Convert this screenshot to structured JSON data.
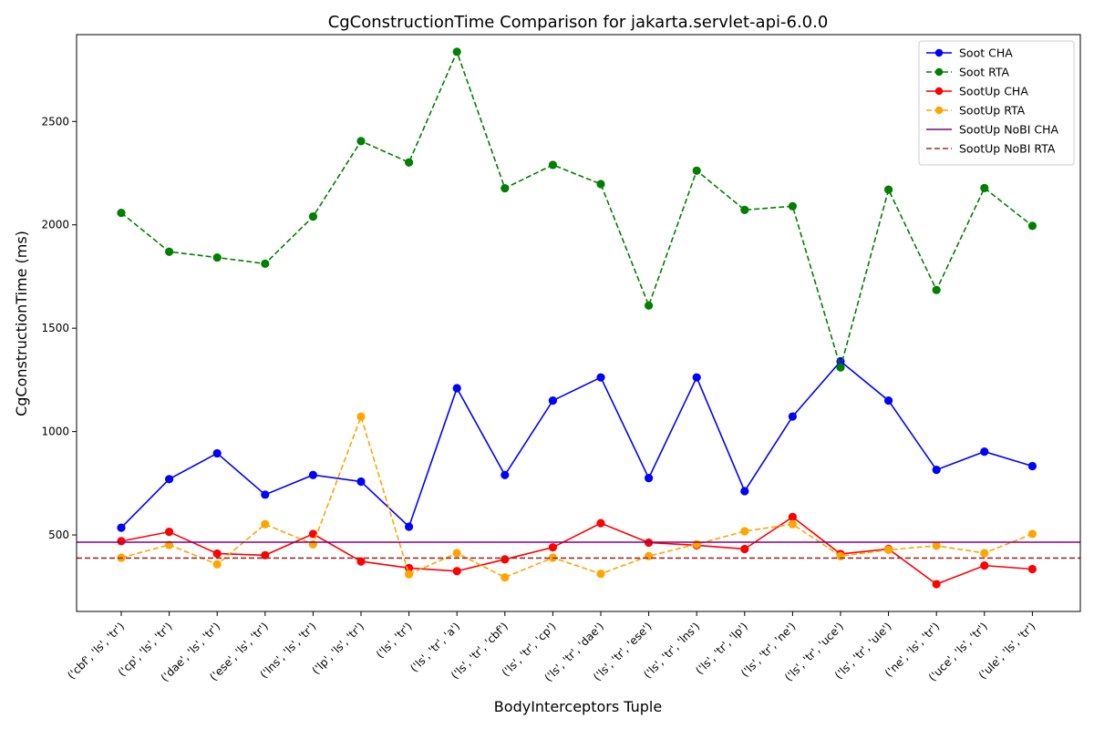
{
  "chart_data": {
    "type": "line",
    "title": "CgConstructionTime Comparison for jakarta.servlet-api-6.0.0",
    "xlabel": "BodyInterceptors Tuple",
    "ylabel": "CgConstructionTime (ms)",
    "ylim": [
      130,
      2920
    ],
    "yticks": [
      500,
      1000,
      1500,
      2000,
      2500
    ],
    "legend_position": "top-right",
    "grid": false,
    "categories": [
      "('cbf', 'ls', 'tr')",
      "('cp', 'ls', 'tr')",
      "('dae', 'ls', 'tr')",
      "('ese', 'ls', 'tr')",
      "('lns', 'ls', 'tr')",
      "('lp', 'ls', 'tr')",
      "('ls', 'tr')",
      "('ls', 'tr', 'a')",
      "('ls', 'tr', 'cbf')",
      "('ls', 'tr', 'cp')",
      "('ls', 'tr', 'dae')",
      "('ls', 'tr', 'ese')",
      "('ls', 'tr', 'lns')",
      "('ls', 'tr', 'lp')",
      "('ls', 'tr', 'ne')",
      "('ls', 'tr', 'uce')",
      "('ls', 'tr', 'ule')",
      "('ne', 'ls', 'tr')",
      "('uce', 'ls', 'tr')",
      "('ule', 'ls', 'tr')"
    ],
    "series": [
      {
        "name": "Soot CHA",
        "color": "#0000ff",
        "dashed": false,
        "marker": true,
        "values": [
          535,
          770,
          895,
          695,
          790,
          758,
          540,
          1210,
          790,
          1150,
          1262,
          775,
          1262,
          712,
          1073,
          1340,
          1150,
          815,
          903,
          833
        ]
      },
      {
        "name": "Soot RTA",
        "color": "#008000",
        "dashed": true,
        "marker": true,
        "values": [
          2058,
          1870,
          1842,
          1812,
          2040,
          2405,
          2302,
          2837,
          2177,
          2290,
          2197,
          1610,
          2262,
          2072,
          2090,
          1310,
          2170,
          1685,
          2178,
          1995
        ]
      },
      {
        "name": "SootUp CHA",
        "color": "#ff0000",
        "dashed": false,
        "marker": true,
        "values": [
          470,
          515,
          410,
          402,
          505,
          372,
          340,
          325,
          382,
          440,
          557,
          463,
          450,
          432,
          587,
          408,
          432,
          262,
          352,
          335
        ]
      },
      {
        "name": "SootUp RTA",
        "color": "#ffa500",
        "dashed": true,
        "marker": true,
        "values": [
          390,
          452,
          358,
          552,
          455,
          1072,
          310,
          412,
          295,
          390,
          312,
          398,
          455,
          518,
          552,
          398,
          428,
          448,
          412,
          505
        ]
      },
      {
        "name": "SootUp NoBI CHA",
        "color": "#800080",
        "dashed": false,
        "marker": false,
        "hline": 465
      },
      {
        "name": "SootUp NoBI RTA",
        "color": "#a52a2a",
        "dashed": true,
        "marker": false,
        "hline": 388
      }
    ]
  }
}
